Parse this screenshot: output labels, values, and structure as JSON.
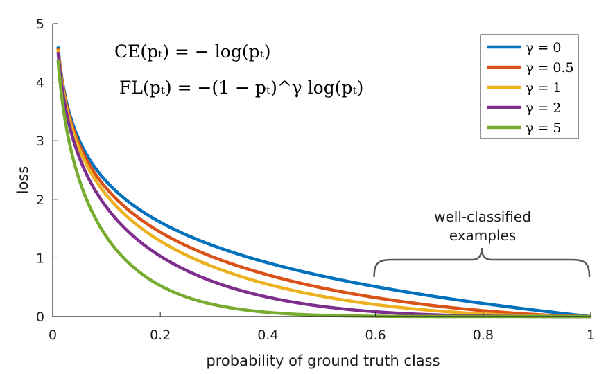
{
  "chart_data": {
    "type": "line",
    "xlabel": "probability of ground truth class",
    "ylabel": "loss",
    "xlim": [
      0,
      1
    ],
    "ylim": [
      0,
      5
    ],
    "xticks": [
      "0",
      "0.2",
      "0.4",
      "0.6",
      "0.8",
      "1"
    ],
    "yticks": [
      "0",
      "1",
      "2",
      "3",
      "4",
      "5"
    ],
    "grid": false,
    "legend_position": "top-right",
    "formulas": [
      "CE(pₜ) = − log(pₜ)",
      "FL(pₜ) = −(1 − pₜ)^γ log(pₜ)"
    ],
    "annotation": {
      "line1": "well-classified",
      "line2": "examples",
      "x_range": [
        0.6,
        1.0
      ]
    },
    "x": [
      0.01,
      0.02,
      0.03,
      0.05,
      0.07,
      0.1,
      0.15,
      0.2,
      0.3,
      0.4,
      0.5,
      0.6,
      0.7,
      0.8,
      0.9,
      1.0
    ],
    "series": [
      {
        "name": "γ = 0",
        "gamma": 0,
        "color": "#0072BD",
        "values": [
          4.61,
          3.91,
          3.51,
          3.0,
          2.66,
          2.3,
          1.9,
          1.61,
          1.2,
          0.92,
          0.69,
          0.51,
          0.36,
          0.22,
          0.11,
          0.0
        ]
      },
      {
        "name": "γ = 0.5",
        "gamma": 0.5,
        "color": "#D95319",
        "values": [
          4.58,
          3.87,
          3.46,
          2.92,
          2.58,
          2.18,
          1.75,
          1.44,
          1.0,
          0.71,
          0.49,
          0.32,
          0.2,
          0.1,
          0.03,
          0.0
        ]
      },
      {
        "name": "γ = 1",
        "gamma": 1,
        "color": "#EDB120",
        "values": [
          4.56,
          3.83,
          3.4,
          2.85,
          2.47,
          2.07,
          1.61,
          1.29,
          0.84,
          0.55,
          0.35,
          0.2,
          0.11,
          0.04,
          0.01,
          0.0
        ]
      },
      {
        "name": "γ = 2",
        "gamma": 2,
        "color": "#7E2F8E",
        "values": [
          4.52,
          3.76,
          3.31,
          2.7,
          2.3,
          1.87,
          1.37,
          1.03,
          0.59,
          0.33,
          0.17,
          0.08,
          0.03,
          0.01,
          0.0,
          0.0
        ]
      },
      {
        "name": "γ = 5",
        "gamma": 5,
        "color": "#77AC30",
        "values": [
          4.38,
          3.54,
          3.01,
          2.32,
          1.84,
          1.36,
          0.84,
          0.53,
          0.2,
          0.07,
          0.02,
          0.01,
          0.0,
          0.0,
          0.0,
          0.0
        ]
      }
    ]
  }
}
